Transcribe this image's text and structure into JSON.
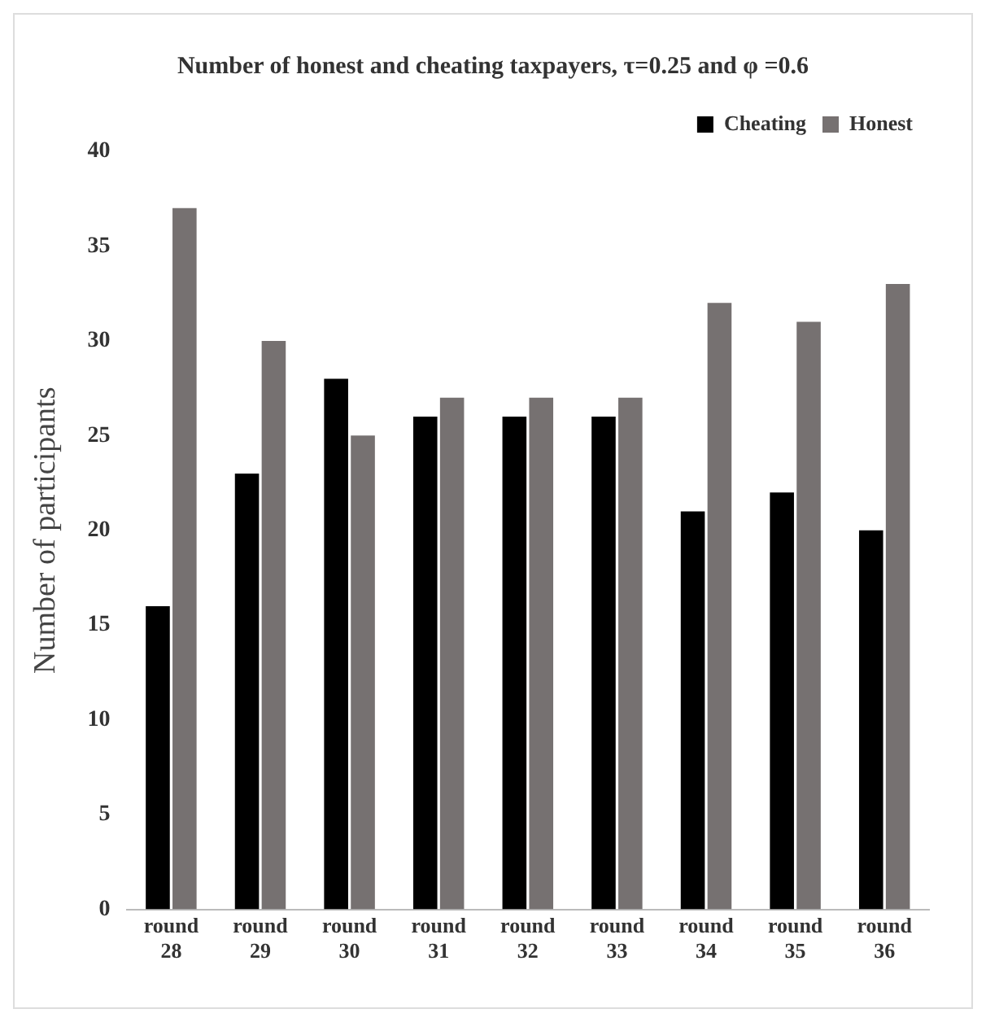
{
  "chart_data": {
    "type": "bar",
    "title": "Number of honest and cheating taxpayers, τ=0.25 and φ =0.6",
    "ylabel": "Number of participants",
    "categories": [
      "round 28",
      "round 29",
      "round 30",
      "round 31",
      "round 32",
      "round 33",
      "round 34",
      "round 35",
      "round 36"
    ],
    "series": [
      {
        "name": "Cheating",
        "color": "#000000",
        "values": [
          16,
          23,
          28,
          26,
          26,
          26,
          21,
          22,
          20
        ]
      },
      {
        "name": "Honest",
        "color": "#767171",
        "values": [
          37,
          30,
          25,
          27,
          27,
          27,
          32,
          31,
          33
        ]
      }
    ],
    "ylim": [
      0,
      40
    ],
    "yticks": [
      0,
      5,
      10,
      15,
      20,
      25,
      30,
      35,
      40
    ],
    "grid": false,
    "legend": "top right"
  }
}
